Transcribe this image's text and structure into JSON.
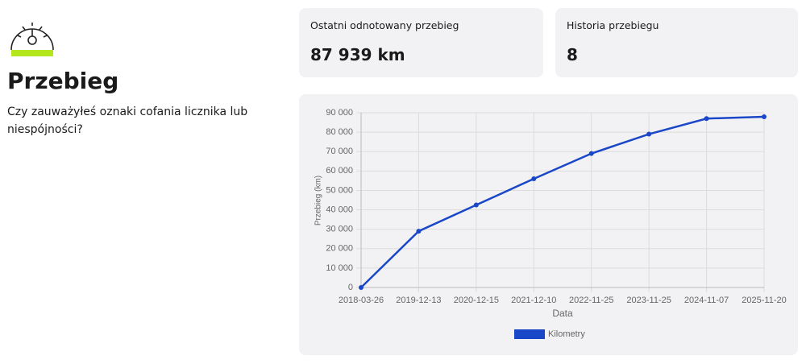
{
  "header": {
    "title": "Przebieg",
    "subtitle": "Czy zauważyłeś oznaki cofania licznika lub niespójności?"
  },
  "cards": [
    {
      "label": "Ostatni odnotowany przebieg",
      "value": "87 939 km"
    },
    {
      "label": "Historia przebiegu",
      "value": "8"
    }
  ],
  "chart_data": {
    "type": "line",
    "x_label": "Data",
    "y_label": "Przebieg (km)",
    "categories": [
      "2018-03-26",
      "2019-12-13",
      "2020-12-15",
      "2021-12-10",
      "2022-11-25",
      "2023-11-25",
      "2024-11-07",
      "2025-11-20"
    ],
    "series": [
      {
        "name": "Kilometry",
        "color": "#1a47c8",
        "values": [
          0,
          29000,
          42500,
          56000,
          69000,
          79000,
          87000,
          87939
        ]
      }
    ],
    "ylim": [
      0,
      90000
    ],
    "yticks": [
      0,
      {
        "value": 10000,
        "label": "10 000"
      },
      {
        "value": 20000,
        "label": "20 000"
      },
      {
        "value": 30000,
        "label": "30 000"
      },
      {
        "value": 40000,
        "label": "40 000"
      },
      {
        "value": 50000,
        "label": "50 000"
      },
      {
        "value": 60000,
        "label": "60 000"
      },
      {
        "value": 70000,
        "label": "70 000"
      },
      {
        "value": 80000,
        "label": "80 000"
      },
      {
        "value": 90000,
        "label": "90 000"
      }
    ],
    "grid": true,
    "legend": "bottom"
  }
}
